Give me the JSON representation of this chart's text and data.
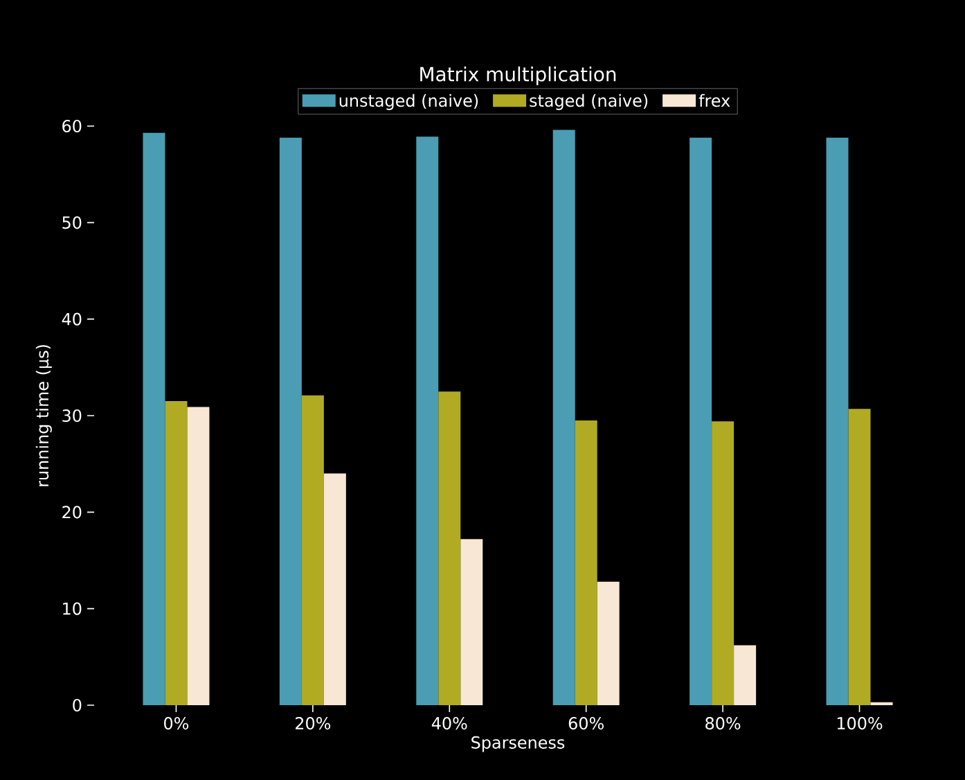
{
  "chart_data": {
    "type": "bar",
    "title": "Matrix multiplication",
    "xlabel": "Sparseness",
    "ylabel": "running time (μs)",
    "categories": [
      "0%",
      "20%",
      "40%",
      "60%",
      "80%",
      "100%"
    ],
    "series": [
      {
        "name": "unstaged (naive)",
        "color": "#4a9db3",
        "values": [
          59.3,
          58.8,
          58.9,
          59.6,
          58.8,
          58.8
        ]
      },
      {
        "name": "staged (naive)",
        "color": "#b0ab23",
        "values": [
          31.5,
          32.1,
          32.5,
          29.5,
          29.4,
          30.7
        ]
      },
      {
        "name": "frex",
        "color": "#f8e7d4",
        "values": [
          30.9,
          24.0,
          17.2,
          12.8,
          6.2,
          0.3
        ]
      }
    ],
    "ylim": [
      0,
      60
    ],
    "yticks": [
      0,
      10,
      20,
      30,
      40,
      50,
      60
    ],
    "legend": "top",
    "grid": false
  }
}
